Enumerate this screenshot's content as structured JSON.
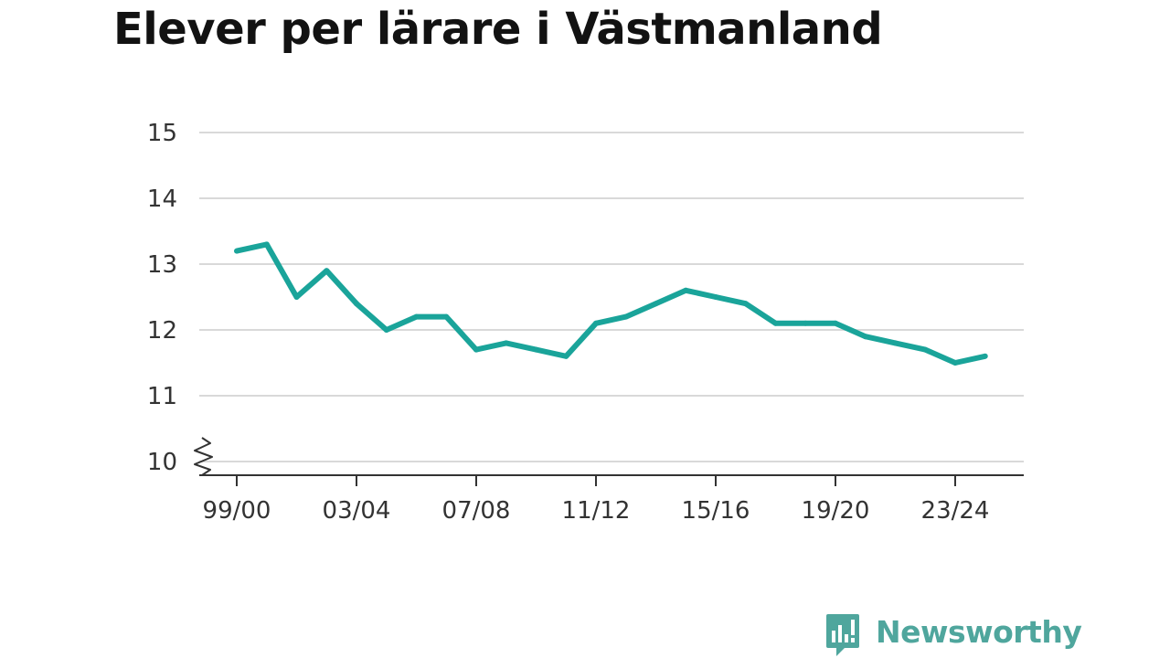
{
  "title": "Elever per lärare i Västmanland",
  "brand": {
    "name": "Newsworthy",
    "color": "#4fa69d",
    "icon": "newsworthy-chart-bubble-icon"
  },
  "colors": {
    "line": "#1aa49a",
    "grid": "#d9d9d9",
    "axis": "#333333",
    "text": "#121212"
  },
  "chart_data": {
    "type": "line",
    "title": "Elever per lärare i Västmanland",
    "xlabel": "",
    "ylabel": "",
    "x": [
      "99/00",
      "00/01",
      "01/02",
      "02/03",
      "03/04",
      "04/05",
      "05/06",
      "06/07",
      "07/08",
      "08/09",
      "09/10",
      "10/11",
      "11/12",
      "12/13",
      "13/14",
      "14/15",
      "15/16",
      "16/17",
      "17/18",
      "18/19",
      "19/20",
      "20/21",
      "21/22",
      "22/23",
      "23/24",
      "24/25"
    ],
    "series": [
      {
        "values": [
          13.2,
          13.3,
          12.5,
          12.9,
          12.4,
          12.0,
          12.2,
          12.2,
          11.7,
          11.8,
          11.7,
          11.6,
          12.1,
          12.2,
          12.4,
          12.6,
          12.5,
          12.4,
          12.1,
          12.1,
          12.1,
          11.9,
          11.8,
          11.7,
          11.5,
          11.6
        ]
      }
    ],
    "x_tick_labels": [
      "99/00",
      "03/04",
      "07/08",
      "11/12",
      "15/16",
      "19/20",
      "23/24"
    ],
    "y_ticks": [
      "10",
      "11",
      "12",
      "13",
      "14",
      "15"
    ],
    "ylim": [
      10,
      15
    ],
    "y_axis_break": true,
    "grid": "horizontal",
    "legend": "none"
  }
}
